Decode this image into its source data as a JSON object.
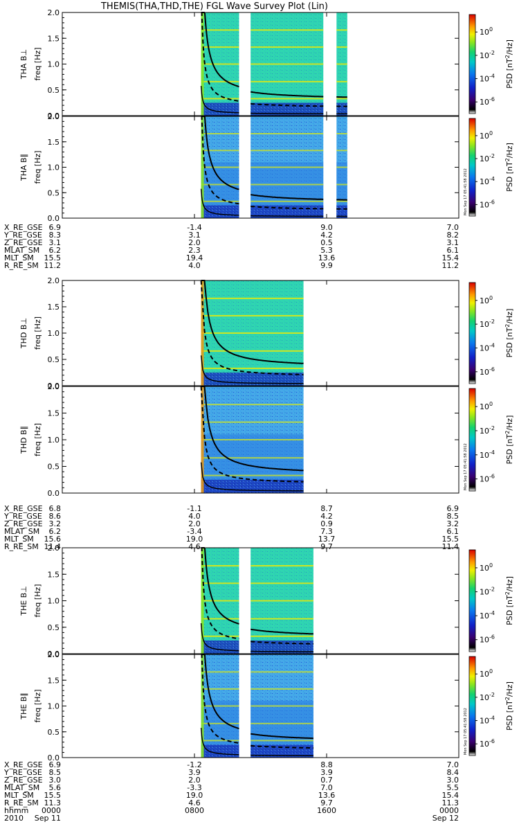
{
  "title": "THEMIS(THA,THD,THE) FGL Wave Survey Plot (Lin)",
  "chart_data": {
    "type": "heatmap",
    "title": "THEMIS(THA,THD,THE) FGL Wave Survey Plot (Lin)",
    "x_axis": {
      "range_hours": [
        0,
        24
      ],
      "ticks": [
        {
          "hours": 0,
          "hhmm": "0000",
          "date": "2010 Sep 11"
        },
        {
          "hours": 8,
          "hhmm": "0800",
          "date": ""
        },
        {
          "hours": 16,
          "hhmm": "1600",
          "date": ""
        },
        {
          "hours": 24,
          "hhmm": "0000",
          "date": "Sep 12"
        }
      ],
      "row_labels": [
        "hhmm",
        "2010"
      ]
    },
    "y_axis": {
      "label": "freq [Hz]",
      "range": [
        0,
        2.0
      ],
      "ticks": [
        "0.0",
        "0.5",
        "1.0",
        "1.5",
        "2.0"
      ]
    },
    "colorbar": {
      "label": "PSD [nT^2/Hz]",
      "label_main": "PSD [nT",
      "label_exp": "2",
      "label_tail": "/Hz]",
      "scale": "log",
      "range_exp": [
        -7,
        1.5
      ],
      "tick_exps": [
        "0",
        "-2",
        "-4",
        "-6"
      ],
      "base": "10"
    },
    "stamp": "Mon Sep 17 05:41:58 2012",
    "probes": [
      {
        "id": "THA",
        "panels": [
          {
            "label": "THA B⊥"
          },
          {
            "label": "THA B∥"
          }
        ],
        "data_intervals_hours": [
          [
            8.4,
            10.7
          ],
          [
            11.4,
            15.8
          ],
          [
            16.6,
            17.25
          ]
        ],
        "ephemeris": {
          "ticks_hours": [
            0,
            8,
            16,
            24
          ],
          "rows": [
            {
              "name": "X_RE_GSE",
              "values": [
                "6.9",
                "-1.4",
                "9.0",
                "7.0"
              ]
            },
            {
              "name": "Y_RE_GSE",
              "values": [
                "8.3",
                "3.1",
                "4.2",
                "8.2"
              ]
            },
            {
              "name": "Z_RE_GSE",
              "values": [
                "3.1",
                "2.0",
                "0.5",
                "3.1"
              ]
            },
            {
              "name": "MLAT_SM",
              "values": [
                "6.2",
                "2.3",
                "5.3",
                "6.1"
              ]
            },
            {
              "name": "MLT_SM",
              "values": [
                "15.5",
                "19.4",
                "13.6",
                "15.4"
              ]
            },
            {
              "name": "R_RE_SM",
              "values": [
                "11.2",
                "4.0",
                "9.9",
                "11.2"
              ]
            }
          ]
        }
      },
      {
        "id": "THD",
        "panels": [
          {
            "label": "THD B⊥"
          },
          {
            "label": "THD B∥"
          }
        ],
        "data_intervals_hours": [
          [
            8.4,
            14.6
          ]
        ],
        "ephemeris": {
          "ticks_hours": [
            0,
            8,
            16,
            24
          ],
          "rows": [
            {
              "name": "X_RE_GSE",
              "values": [
                "6.8",
                "-1.1",
                "8.7",
                "6.9"
              ]
            },
            {
              "name": "Y_RE_GSE",
              "values": [
                "8.6",
                "4.0",
                "4.2",
                "8.5"
              ]
            },
            {
              "name": "Z_RE_GSE",
              "values": [
                "3.2",
                "2.0",
                "0.9",
                "3.2"
              ]
            },
            {
              "name": "MLAT_SM",
              "values": [
                "6.2",
                "-3.4",
                "7.3",
                "6.1"
              ]
            },
            {
              "name": "MLT_SM",
              "values": [
                "15.6",
                "19.0",
                "13.7",
                "15.5"
              ]
            },
            {
              "name": "R_RE_SM",
              "values": [
                "11.4",
                "4.6",
                "9.7",
                "11.4"
              ]
            }
          ]
        }
      },
      {
        "id": "THE",
        "panels": [
          {
            "label": "THE B⊥"
          },
          {
            "label": "THE B∥"
          }
        ],
        "data_intervals_hours": [
          [
            8.4,
            10.7
          ],
          [
            11.4,
            15.2
          ]
        ],
        "ephemeris": {
          "ticks_hours": [
            0,
            8,
            16,
            24
          ],
          "rows": [
            {
              "name": "X_RE_GSE",
              "values": [
                "6.9",
                "-1.2",
                "8.8",
                "7.0"
              ]
            },
            {
              "name": "Y_RE_GSE",
              "values": [
                "8.5",
                "3.9",
                "3.9",
                "8.4"
              ]
            },
            {
              "name": "Z_RE_GSE",
              "values": [
                "3.0",
                "2.0",
                "0.7",
                "3.0"
              ]
            },
            {
              "name": "MLAT_SM",
              "values": [
                "5.6",
                "-3.3",
                "7.0",
                "5.5"
              ]
            },
            {
              "name": "MLT_SM",
              "values": [
                "15.5",
                "19.0",
                "13.6",
                "15.4"
              ]
            },
            {
              "name": "R_RE_SM",
              "values": [
                "11.3",
                "4.6",
                "9.7",
                "11.3"
              ]
            }
          ]
        }
      }
    ]
  }
}
